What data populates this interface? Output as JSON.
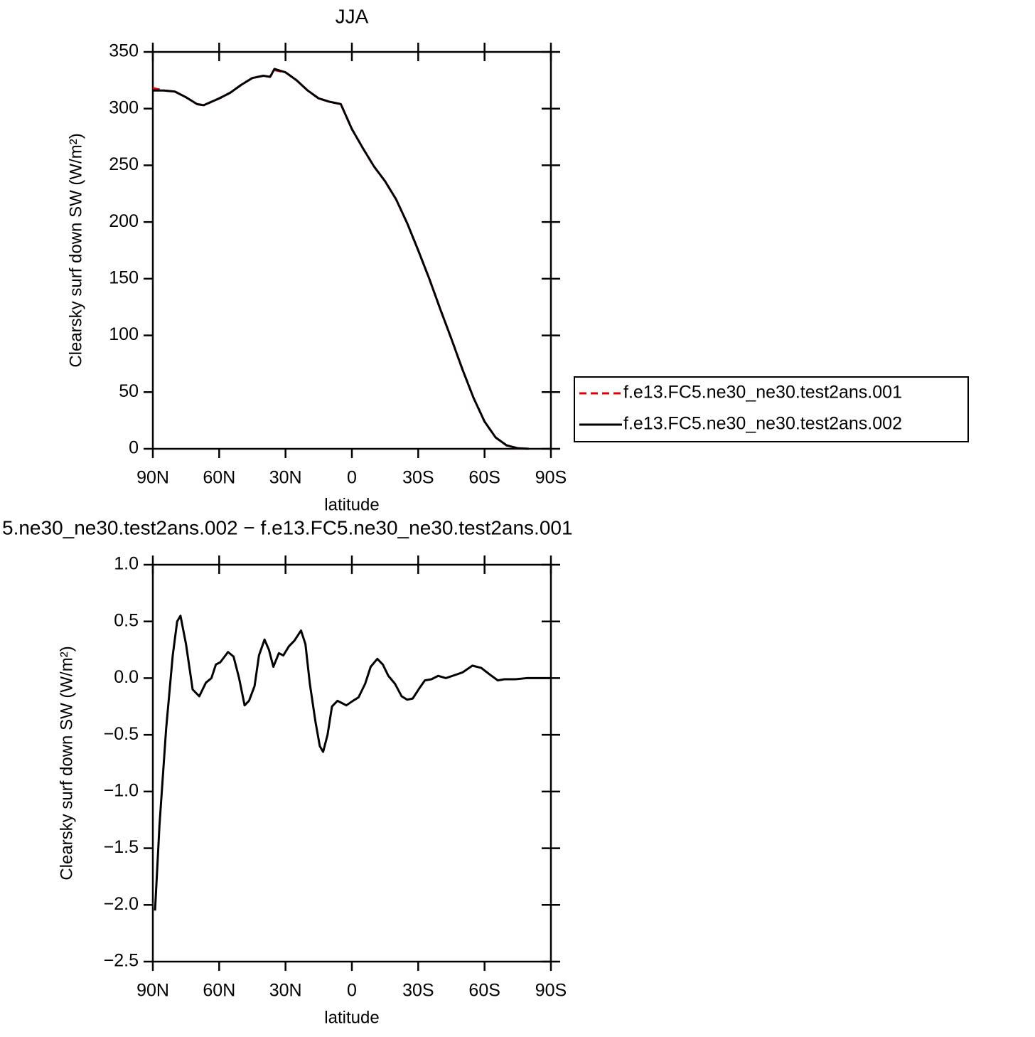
{
  "chart_data": [
    {
      "type": "line",
      "title": "JJA",
      "xlabel": "latitude",
      "ylabel": "Clearsky surf down SW (W/m²)",
      "x": [
        90,
        85,
        80,
        75,
        70,
        67,
        60,
        55,
        50,
        45,
        40,
        37,
        35,
        30,
        25,
        20,
        15,
        10,
        5,
        0,
        -5,
        -10,
        -15,
        -20,
        -25,
        -30,
        -35,
        -40,
        -45,
        -50,
        -55,
        -60,
        -65,
        -70,
        -75,
        -80
      ],
      "series": [
        {
          "name": "f.e13.FC5.ne30_ne30.test2ans.001",
          "color": "#e00000",
          "linestyle": "dashed",
          "values": [
            318,
            316,
            315,
            310,
            304,
            303,
            309,
            314,
            321,
            327,
            329,
            328,
            334,
            332,
            325,
            316,
            309,
            306,
            304,
            282,
            265,
            249,
            236,
            220,
            199,
            175,
            150,
            123,
            97,
            70,
            45,
            24,
            10,
            3,
            0.5,
            0
          ]
        },
        {
          "name": "f.e13.FC5.ne30_ne30.test2ans.002",
          "color": "#000000",
          "linestyle": "solid",
          "values": [
            316,
            316,
            315,
            310,
            304,
            303,
            309,
            314,
            321,
            327,
            329,
            328,
            335,
            332,
            325,
            316,
            309,
            306,
            304,
            282,
            265,
            249,
            236,
            220,
            199,
            175,
            150,
            123,
            97,
            70,
            45,
            24,
            10,
            3,
            0.5,
            0
          ]
        }
      ],
      "xlim": [
        90,
        -90
      ],
      "xticks": [
        {
          "value": 90,
          "label": "90N"
        },
        {
          "value": 60,
          "label": "60N"
        },
        {
          "value": 30,
          "label": "30N"
        },
        0,
        {
          "value": -30,
          "label": "30S"
        },
        {
          "value": -60,
          "label": "60S"
        },
        {
          "value": -90,
          "label": "90S"
        }
      ],
      "ylim": [
        0,
        350
      ],
      "yticks": [
        0,
        50,
        100,
        150,
        200,
        250,
        300,
        350
      ],
      "grid": false,
      "legend": "right"
    },
    {
      "type": "line",
      "title": "5.ne30_ne30.test2ans.002 − f.e13.FC5.ne30_ne30.test2ans.001",
      "xlabel": "latitude",
      "ylabel": "Clearsky surf down SW (W/m²)",
      "x": [
        89,
        87,
        84,
        81,
        79,
        77.5,
        75,
        72,
        69,
        66,
        63.5,
        61.5,
        59.5,
        56,
        53.5,
        51,
        48.5,
        46.5,
        44,
        42,
        39.5,
        37.5,
        35.5,
        33,
        31,
        28.5,
        26,
        23,
        21,
        19,
        16.5,
        14.5,
        13,
        11,
        9,
        6.5,
        4.5,
        2.5,
        -0.5,
        -3,
        -6,
        -8.5,
        -11.5,
        -14,
        -16.5,
        -19.5,
        -22.5,
        -25,
        -27.5,
        -30.5,
        -33,
        -36,
        -39,
        -42.5,
        -45.5,
        -50,
        -54.5,
        -58.5,
        -62.5,
        -66,
        -69,
        -74,
        -79,
        -90
      ],
      "series": [
        {
          "color": "#000000",
          "linestyle": "solid",
          "values": [
            -2.05,
            -1.3,
            -0.45,
            0.2,
            0.5,
            0.55,
            0.3,
            -0.1,
            -0.16,
            -0.04,
            0.0,
            0.12,
            0.14,
            0.23,
            0.19,
            0.0,
            -0.24,
            -0.2,
            -0.07,
            0.2,
            0.34,
            0.25,
            0.1,
            0.22,
            0.2,
            0.28,
            0.33,
            0.42,
            0.3,
            -0.05,
            -0.38,
            -0.6,
            -0.65,
            -0.5,
            -0.25,
            -0.2,
            -0.22,
            -0.24,
            -0.2,
            -0.17,
            -0.05,
            0.1,
            0.17,
            0.12,
            0.02,
            -0.05,
            -0.16,
            -0.19,
            -0.18,
            -0.09,
            -0.02,
            -0.01,
            0.02,
            0.0,
            0.02,
            0.05,
            0.11,
            0.09,
            0.03,
            -0.02,
            -0.01,
            -0.01,
            0.0,
            0.0
          ]
        }
      ],
      "xlim": [
        90,
        -90
      ],
      "xticks": [
        {
          "value": 90,
          "label": "90N"
        },
        {
          "value": 60,
          "label": "60N"
        },
        {
          "value": 30,
          "label": "30N"
        },
        0,
        {
          "value": -30,
          "label": "30S"
        },
        {
          "value": -60,
          "label": "60S"
        },
        {
          "value": -90,
          "label": "90S"
        }
      ],
      "ylim": [
        -2.5,
        1
      ],
      "yticks": [
        {
          "value": 1,
          "label": "1.0"
        },
        {
          "value": 0.5,
          "label": "0.5"
        },
        {
          "value": 0,
          "label": "0.0"
        },
        {
          "value": -0.5,
          "label": "−0.5"
        },
        {
          "value": -1,
          "label": "−1.0"
        },
        {
          "value": -1.5,
          "label": "−1.5"
        },
        {
          "value": -2,
          "label": "−2.0"
        },
        {
          "value": -2.5,
          "label": "−2.5"
        }
      ],
      "grid": false
    }
  ]
}
